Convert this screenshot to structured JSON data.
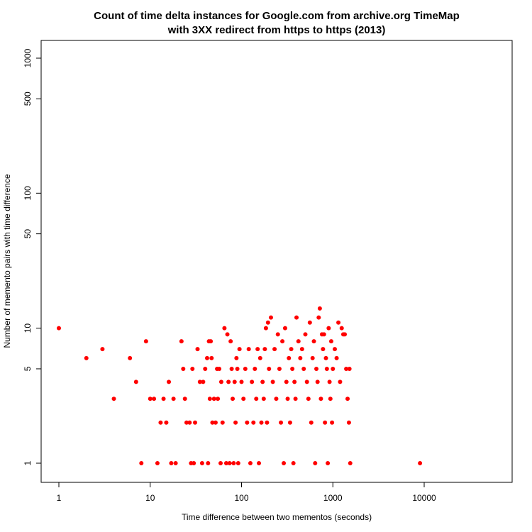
{
  "chart_data": {
    "type": "scatter",
    "title_line1": "Count of time delta instances for Google.com from archive.org TimeMap",
    "title_line2": "with 3XX redirect from https to https (2013)",
    "xlabel": "Time difference between two mementos (seconds)",
    "ylabel": "Number of memento pairs with time difference",
    "x_scale": "log",
    "y_scale": "log",
    "xlim": [
      0.7,
      50000
    ],
    "ylim": [
      0.75,
      1500
    ],
    "x_ticks": [
      1,
      10,
      100,
      1000,
      10000
    ],
    "x_tick_labels": [
      "1",
      "10",
      "100",
      "1000",
      "10000"
    ],
    "y_ticks": [
      1,
      5,
      10,
      50,
      100,
      500,
      1000
    ],
    "y_tick_labels": [
      "1",
      "5",
      "10",
      "50",
      "100",
      "500",
      "1000"
    ],
    "grid": false,
    "marker_color": "#ff0000",
    "points": [
      [
        1,
        10
      ],
      [
        2,
        6
      ],
      [
        3,
        7
      ],
      [
        4,
        3
      ],
      [
        6,
        6
      ],
      [
        7,
        4
      ],
      [
        8,
        1
      ],
      [
        9,
        8
      ],
      [
        10,
        3
      ],
      [
        11,
        3
      ],
      [
        12,
        1
      ],
      [
        13,
        2
      ],
      [
        14,
        3
      ],
      [
        15,
        2
      ],
      [
        16,
        4
      ],
      [
        17,
        1
      ],
      [
        18,
        3
      ],
      [
        19,
        1
      ],
      [
        22,
        8
      ],
      [
        23,
        5
      ],
      [
        24,
        3
      ],
      [
        25,
        2
      ],
      [
        27,
        2
      ],
      [
        28,
        1
      ],
      [
        29,
        5
      ],
      [
        30,
        1
      ],
      [
        31,
        2
      ],
      [
        33,
        7
      ],
      [
        35,
        4
      ],
      [
        37,
        1
      ],
      [
        38,
        4
      ],
      [
        40,
        5
      ],
      [
        42,
        6
      ],
      [
        43,
        1
      ],
      [
        44,
        8
      ],
      [
        45,
        3
      ],
      [
        46,
        8
      ],
      [
        47,
        6
      ],
      [
        48,
        2
      ],
      [
        50,
        3
      ],
      [
        52,
        2
      ],
      [
        54,
        5
      ],
      [
        55,
        3
      ],
      [
        57,
        5
      ],
      [
        59,
        1
      ],
      [
        60,
        4
      ],
      [
        62,
        2
      ],
      [
        65,
        10
      ],
      [
        68,
        1
      ],
      [
        70,
        9
      ],
      [
        72,
        4
      ],
      [
        74,
        1
      ],
      [
        76,
        8
      ],
      [
        78,
        5
      ],
      [
        80,
        3
      ],
      [
        82,
        1
      ],
      [
        84,
        4
      ],
      [
        86,
        2
      ],
      [
        88,
        6
      ],
      [
        90,
        5
      ],
      [
        92,
        1
      ],
      [
        95,
        7
      ],
      [
        100,
        4
      ],
      [
        105,
        3
      ],
      [
        110,
        5
      ],
      [
        115,
        2
      ],
      [
        120,
        7
      ],
      [
        125,
        1
      ],
      [
        130,
        4
      ],
      [
        135,
        2
      ],
      [
        140,
        5
      ],
      [
        145,
        3
      ],
      [
        150,
        7
      ],
      [
        155,
        1
      ],
      [
        160,
        6
      ],
      [
        165,
        2
      ],
      [
        170,
        4
      ],
      [
        175,
        3
      ],
      [
        180,
        7
      ],
      [
        185,
        10
      ],
      [
        190,
        2
      ],
      [
        195,
        11
      ],
      [
        200,
        5
      ],
      [
        210,
        12
      ],
      [
        220,
        4
      ],
      [
        230,
        7
      ],
      [
        240,
        3
      ],
      [
        250,
        9
      ],
      [
        260,
        5
      ],
      [
        270,
        2
      ],
      [
        280,
        8
      ],
      [
        290,
        1
      ],
      [
        300,
        10
      ],
      [
        310,
        4
      ],
      [
        320,
        3
      ],
      [
        330,
        6
      ],
      [
        340,
        2
      ],
      [
        350,
        7
      ],
      [
        360,
        5
      ],
      [
        370,
        1
      ],
      [
        380,
        4
      ],
      [
        390,
        3
      ],
      [
        400,
        12
      ],
      [
        420,
        8
      ],
      [
        440,
        6
      ],
      [
        460,
        7
      ],
      [
        480,
        5
      ],
      [
        500,
        9
      ],
      [
        520,
        4
      ],
      [
        540,
        3
      ],
      [
        560,
        11
      ],
      [
        580,
        2
      ],
      [
        600,
        6
      ],
      [
        620,
        8
      ],
      [
        640,
        1
      ],
      [
        660,
        5
      ],
      [
        680,
        4
      ],
      [
        700,
        12
      ],
      [
        720,
        14
      ],
      [
        740,
        3
      ],
      [
        760,
        9
      ],
      [
        780,
        7
      ],
      [
        800,
        9
      ],
      [
        820,
        2
      ],
      [
        840,
        6
      ],
      [
        860,
        5
      ],
      [
        880,
        1
      ],
      [
        900,
        10
      ],
      [
        920,
        4
      ],
      [
        940,
        3
      ],
      [
        960,
        8
      ],
      [
        980,
        2
      ],
      [
        1000,
        5
      ],
      [
        1050,
        7
      ],
      [
        1100,
        6
      ],
      [
        1150,
        11
      ],
      [
        1200,
        4
      ],
      [
        1250,
        10
      ],
      [
        1300,
        9
      ],
      [
        1350,
        9
      ],
      [
        1400,
        5
      ],
      [
        1450,
        3
      ],
      [
        1500,
        2
      ],
      [
        1550,
        1
      ],
      [
        1520,
        5
      ],
      [
        9000,
        1
      ]
    ]
  }
}
